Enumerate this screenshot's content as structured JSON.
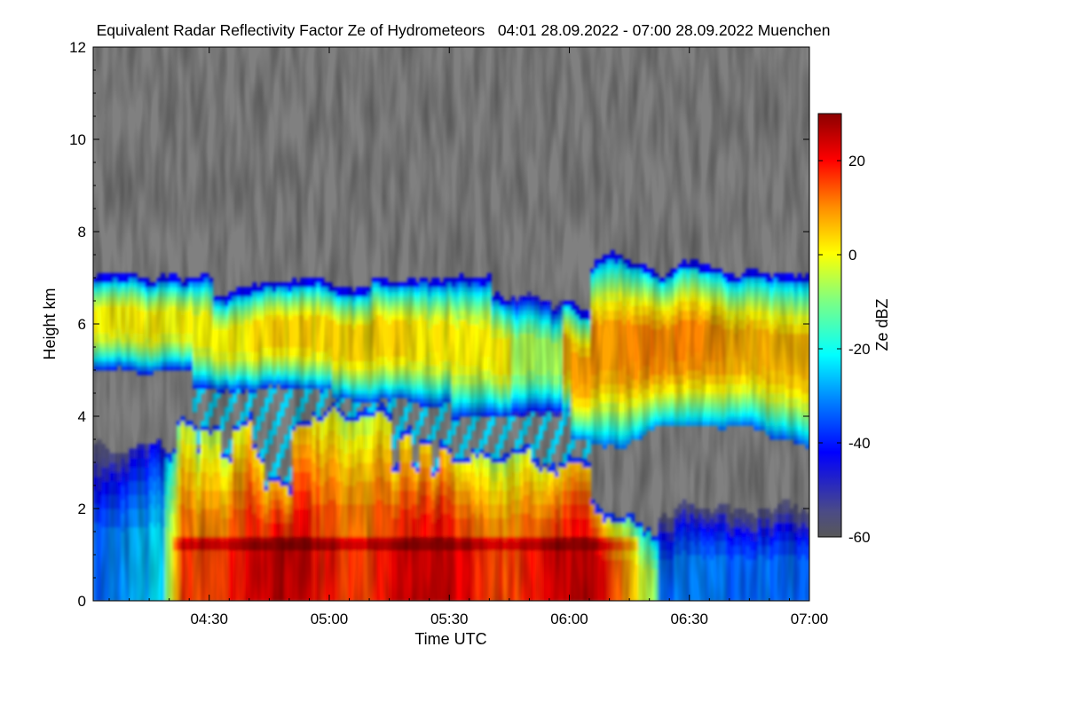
{
  "chart_data": {
    "type": "heatmap",
    "title": "Equivalent Radar Reflectivity Factor Ze of Hydrometeors   04:01 28.09.2022 - 07:00 28.09.2022 Muenchen",
    "xlabel": "Time UTC",
    "ylabel": "Height km",
    "x_start": "04:01",
    "x_end": "07:00",
    "xlim": [
      "04:01",
      "07:00"
    ],
    "ylim": [
      0,
      12
    ],
    "x_ticks": [
      "04:30",
      "05:00",
      "05:30",
      "06:00",
      "06:30",
      "07:00"
    ],
    "y_ticks": [
      0,
      2,
      4,
      6,
      8,
      10,
      12
    ],
    "background_color": "#808080",
    "colorbar": {
      "label": "Ze dBZ",
      "range": [
        -60,
        30
      ],
      "ticks": [
        -60,
        -40,
        -20,
        0,
        20
      ],
      "colors": [
        "#505050",
        "#0000b0",
        "#0000ff",
        "#00ffff",
        "#ffff00",
        "#ff8c00",
        "#ff0000",
        "#8b0000"
      ]
    },
    "echo_layers": [
      {
        "name_shown": false,
        "height_range": [
          0,
          4.3
        ],
        "time_range": [
          "04:22",
          "06:23"
        ],
        "ze_range": [
          0,
          25
        ]
      },
      {
        "name_shown": false,
        "height_range": [
          4.2,
          7.6
        ],
        "time_range": [
          "04:01",
          "07:00"
        ],
        "ze_range": [
          -30,
          10
        ]
      },
      {
        "name_shown": false,
        "height_range": [
          0,
          3.5
        ],
        "time_range": [
          "04:01",
          "04:22"
        ],
        "ze_range": [
          -50,
          0
        ]
      },
      {
        "name_shown": false,
        "height_range": [
          0,
          2.5
        ],
        "time_range": [
          "06:23",
          "07:00"
        ],
        "ze_range": [
          -45,
          -10
        ]
      }
    ],
    "melting_layer_height": 1.3,
    "grid": false,
    "legend": "right"
  }
}
